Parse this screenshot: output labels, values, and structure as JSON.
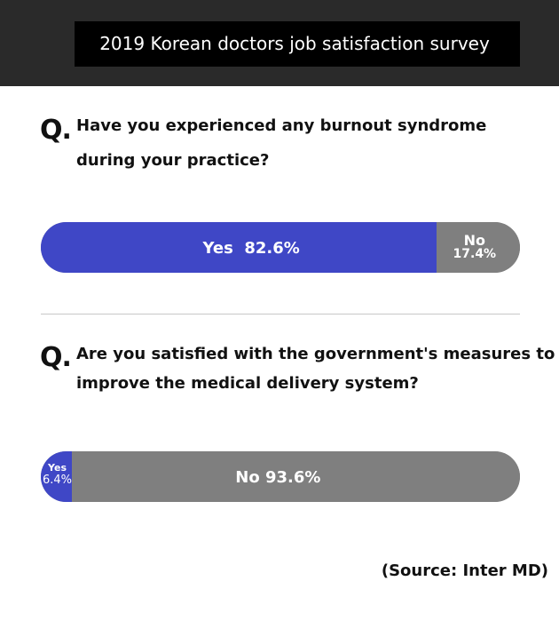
{
  "header": {
    "title": "2019 Korean doctors job satisfaction survey"
  },
  "questions": [
    {
      "marker": "Q.",
      "line1": "Have you experienced any burnout syndrome",
      "line2": "during your practice?"
    },
    {
      "marker": "Q.",
      "line1": "Are you satisfied with the government's measures to",
      "line2": "improve the medical delivery system?"
    }
  ],
  "chart_data": [
    {
      "type": "bar",
      "orientation": "horizontal-stacked",
      "categories": [
        "Yes",
        "No"
      ],
      "values": [
        82.6,
        17.4
      ],
      "value_labels": [
        "82.6%",
        "17.4%"
      ],
      "colors": [
        "#3f47c6",
        "#7f7f7f"
      ]
    },
    {
      "type": "bar",
      "orientation": "horizontal-stacked",
      "categories": [
        "Yes",
        "No"
      ],
      "values": [
        6.4,
        93.6
      ],
      "value_labels": [
        "6.4%",
        "93.6%"
      ],
      "colors": [
        "#3f47c6",
        "#7f7f7f"
      ]
    }
  ],
  "source": "(Source: Inter MD)"
}
